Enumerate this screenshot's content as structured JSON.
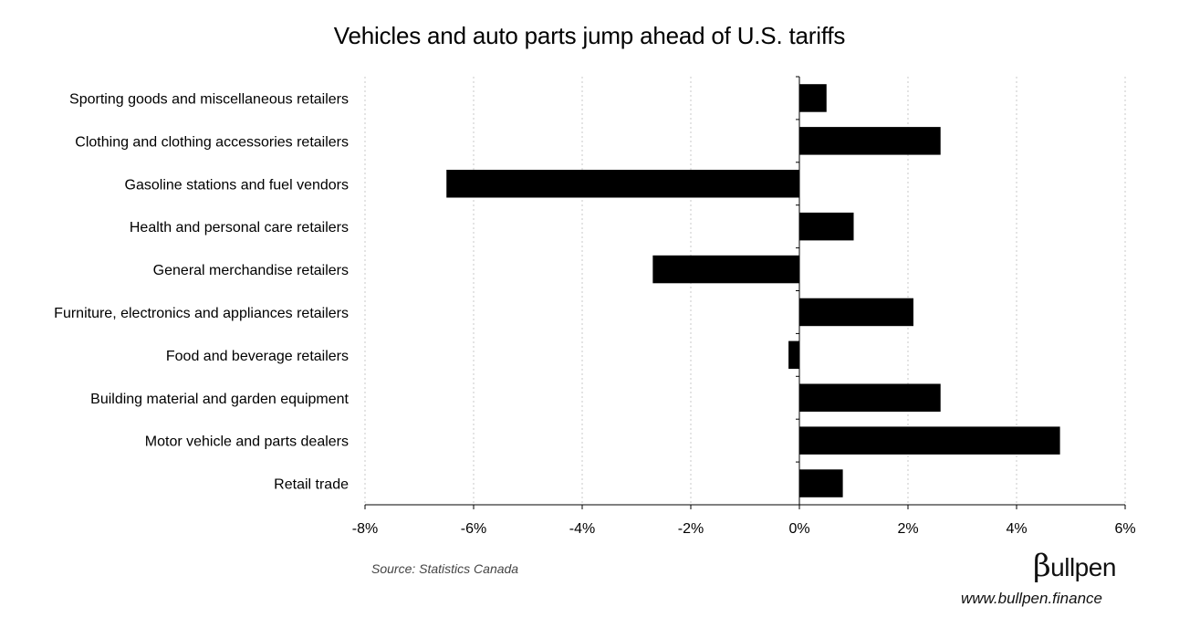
{
  "source": "Source: Statistics Canada",
  "brand": {
    "logo_beta": "β",
    "logo_text": "ullpen",
    "url": "www.bullpen.finance"
  },
  "colors": {
    "bar": "#000000",
    "grid": "#c8c8c8",
    "axis": "#000000"
  },
  "chart_data": {
    "type": "bar",
    "orientation": "horizontal",
    "title": "Vehicles and auto parts jump ahead of U.S. tariffs",
    "xlabel": "",
    "ylabel": "",
    "xlim": [
      -8,
      6
    ],
    "xticks": [
      -8,
      -6,
      -4,
      -2,
      0,
      2,
      4,
      6
    ],
    "xtick_labels": [
      "-8%",
      "-6%",
      "-4%",
      "-2%",
      "0%",
      "2%",
      "4%",
      "6%"
    ],
    "grid": "vertical dotted",
    "legend": "none",
    "categories": [
      "Sporting goods and miscellaneous retailers",
      "Clothing and clothing accessories retailers",
      "Gasoline stations and fuel vendors",
      "Health and personal care retailers",
      "General merchandise retailers",
      "Furniture, electronics and appliances retailers",
      "Food and beverage retailers",
      "Building material and garden equipment",
      "Motor vehicle and parts dealers",
      "Retail trade"
    ],
    "values": [
      0.5,
      2.6,
      -6.5,
      1.0,
      -2.7,
      2.1,
      -0.2,
      2.6,
      4.8,
      0.8
    ]
  }
}
